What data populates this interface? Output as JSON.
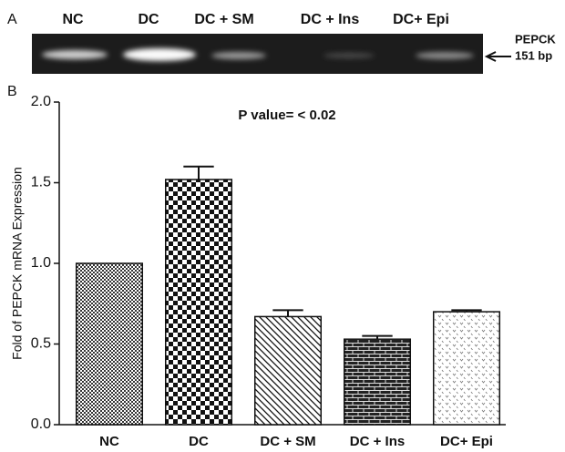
{
  "panel_a": {
    "label": "A",
    "lanes": [
      "NC",
      "DC",
      "DC + SM",
      "DC + Ins",
      "DC+ Epi"
    ],
    "marker": [
      "PEPCK",
      "151 bp"
    ]
  },
  "chart_data": {
    "type": "bar",
    "panel_label": "B",
    "y_label": "Fold of PEPCK mRNA Expression",
    "annotation": "P value= < 0.02",
    "categories": [
      "NC",
      "DC",
      "DC + SM",
      "DC + Ins",
      "DC+ Epi"
    ],
    "values": [
      1.0,
      1.52,
      0.67,
      0.53,
      0.7
    ],
    "errors": [
      0,
      0.08,
      0.04,
      0.02,
      0.01
    ],
    "color": "#111111",
    "ylim": [
      0,
      2
    ],
    "yticks": [
      {
        "value": 0,
        "label": "0.0"
      },
      0.5,
      {
        "value": 1,
        "label": "1.0"
      },
      1.5,
      {
        "value": 2,
        "label": "2.0"
      }
    ]
  }
}
